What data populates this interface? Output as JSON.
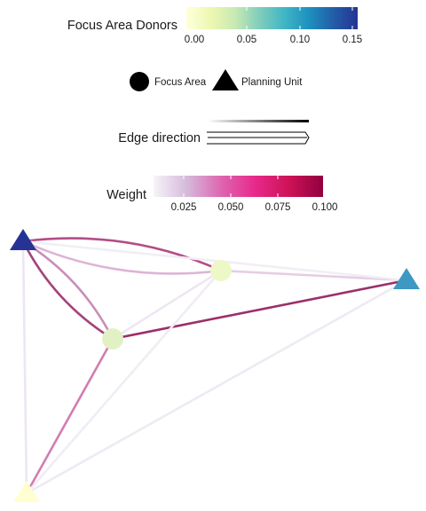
{
  "legend_focus": {
    "title": "Focus Area Donors",
    "ticks": [
      "0.00",
      "0.05",
      "0.10",
      "0.15"
    ],
    "colors": [
      "#ffffd9",
      "#edf8b1",
      "#c7e9b4",
      "#7fcdbb",
      "#41b6c4",
      "#1d91c0",
      "#225ea8",
      "#253494"
    ]
  },
  "legend_shape": {
    "focus_label": "Focus Area",
    "planning_label": "Planning Unit"
  },
  "legend_edge": {
    "title": "Edge direction"
  },
  "legend_weight": {
    "title": "Weight",
    "ticks": [
      "0.025",
      "0.050",
      "0.075",
      "0.100"
    ],
    "colors": [
      "#f7f4f9",
      "#d4b9da",
      "#df65b0",
      "#e7298a",
      "#ce1256",
      "#91003f"
    ]
  },
  "nodes": [
    {
      "id": "tri_topleft",
      "shape": "triangle",
      "color": "#253494"
    },
    {
      "id": "circle_upper",
      "shape": "circle",
      "color": "#eef7c6"
    },
    {
      "id": "tri_right",
      "shape": "triangle",
      "color": "#3d99c4"
    },
    {
      "id": "circle_mid",
      "shape": "circle",
      "color": "#e1f1c3"
    },
    {
      "id": "tri_bottom",
      "shape": "triangle",
      "color": "#ffffcf"
    }
  ],
  "edges": [
    {
      "from": "tri_topleft",
      "to": "circle_upper",
      "color": "#b34d86"
    },
    {
      "from": "circle_upper",
      "to": "tri_topleft",
      "color": "#ddb3d6"
    },
    {
      "from": "tri_topleft",
      "to": "circle_mid",
      "color": "#a4447a"
    },
    {
      "from": "circle_mid",
      "to": "tri_topleft",
      "color": "#c88fb8"
    },
    {
      "from": "circle_mid",
      "to": "tri_right",
      "color": "#9c2e6a"
    },
    {
      "from": "tri_right",
      "to": "circle_upper",
      "color": "#e6cde2"
    },
    {
      "from": "circle_upper",
      "to": "circle_mid",
      "color": "#efe6f2"
    },
    {
      "from": "circle_mid",
      "to": "tri_bottom",
      "color": "#d27cb2"
    },
    {
      "from": "tri_topleft",
      "to": "tri_bottom",
      "color": "#ede6f2"
    },
    {
      "from": "tri_bottom",
      "to": "tri_right",
      "color": "#eeeaf3"
    },
    {
      "from": "tri_bottom",
      "to": "circle_upper",
      "color": "#f1ecf4"
    },
    {
      "from": "tri_topleft",
      "to": "tri_right",
      "color": "#f1eef5"
    }
  ]
}
